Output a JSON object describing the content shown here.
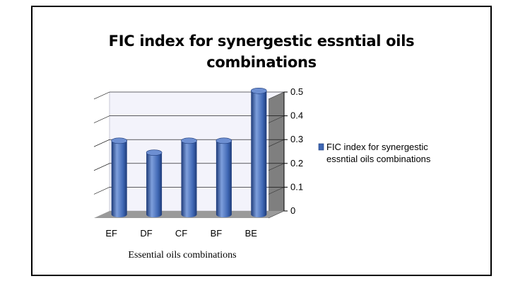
{
  "chart_data": {
    "type": "bar",
    "title_lines": [
      "FIC index for synergestic essntial oils",
      "combinations"
    ],
    "categories": [
      "EF",
      "DF",
      "CF",
      "BF",
      "BE"
    ],
    "series": [
      {
        "name": "FIC index for synergestic essntial oils combinations",
        "values": [
          0.31,
          0.26,
          0.31,
          0.31,
          0.52
        ]
      }
    ],
    "legend_lines": [
      "FIC index for synergestic",
      "essntial oils combinations"
    ],
    "xlabel": "Essential oils combinations",
    "ylabel": "",
    "ylim": [
      0,
      0.5
    ],
    "yticks": [
      "0",
      "0.1",
      "0.2",
      "0.3",
      "0.4",
      "0.5"
    ],
    "grid": true,
    "legend_position": "right",
    "colors": {
      "bar": "#3f67b4",
      "bar_dark": "#1d3a78",
      "bar_light": "#7e9fdc",
      "bar_top": "#6d8fd2",
      "wall": "#f3f3fb",
      "floor": "#9a9a9a",
      "side": "#7f7f7f",
      "grid": "#000000"
    }
  }
}
